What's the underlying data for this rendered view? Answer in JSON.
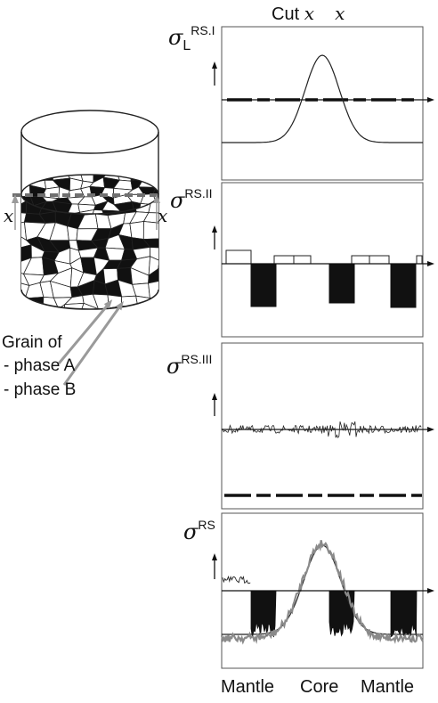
{
  "title": {
    "prefix": "Cut",
    "x1": "x",
    "x2": "x"
  },
  "cylinder": {
    "cut_left": "x",
    "cut_right": "x"
  },
  "legend": {
    "heading": "Grain of",
    "items": [
      "- phase A",
      "- phase B"
    ]
  },
  "panels": [
    {
      "symbol": "σ",
      "subscript": "L",
      "superscript": "RS.I"
    },
    {
      "symbol": "σ",
      "subscript": "",
      "superscript": "RS.II"
    },
    {
      "symbol": "σ",
      "subscript": "",
      "superscript": "RS.III"
    },
    {
      "symbol": "σ",
      "subscript": "",
      "superscript": "RS"
    }
  ],
  "x_labels": [
    "Mantle",
    "Core",
    "Mantle"
  ],
  "colors": {
    "line": "#222222",
    "fill": "#111111",
    "frame": "#555555",
    "dashed": "#707070",
    "arrow": "#999999"
  }
}
